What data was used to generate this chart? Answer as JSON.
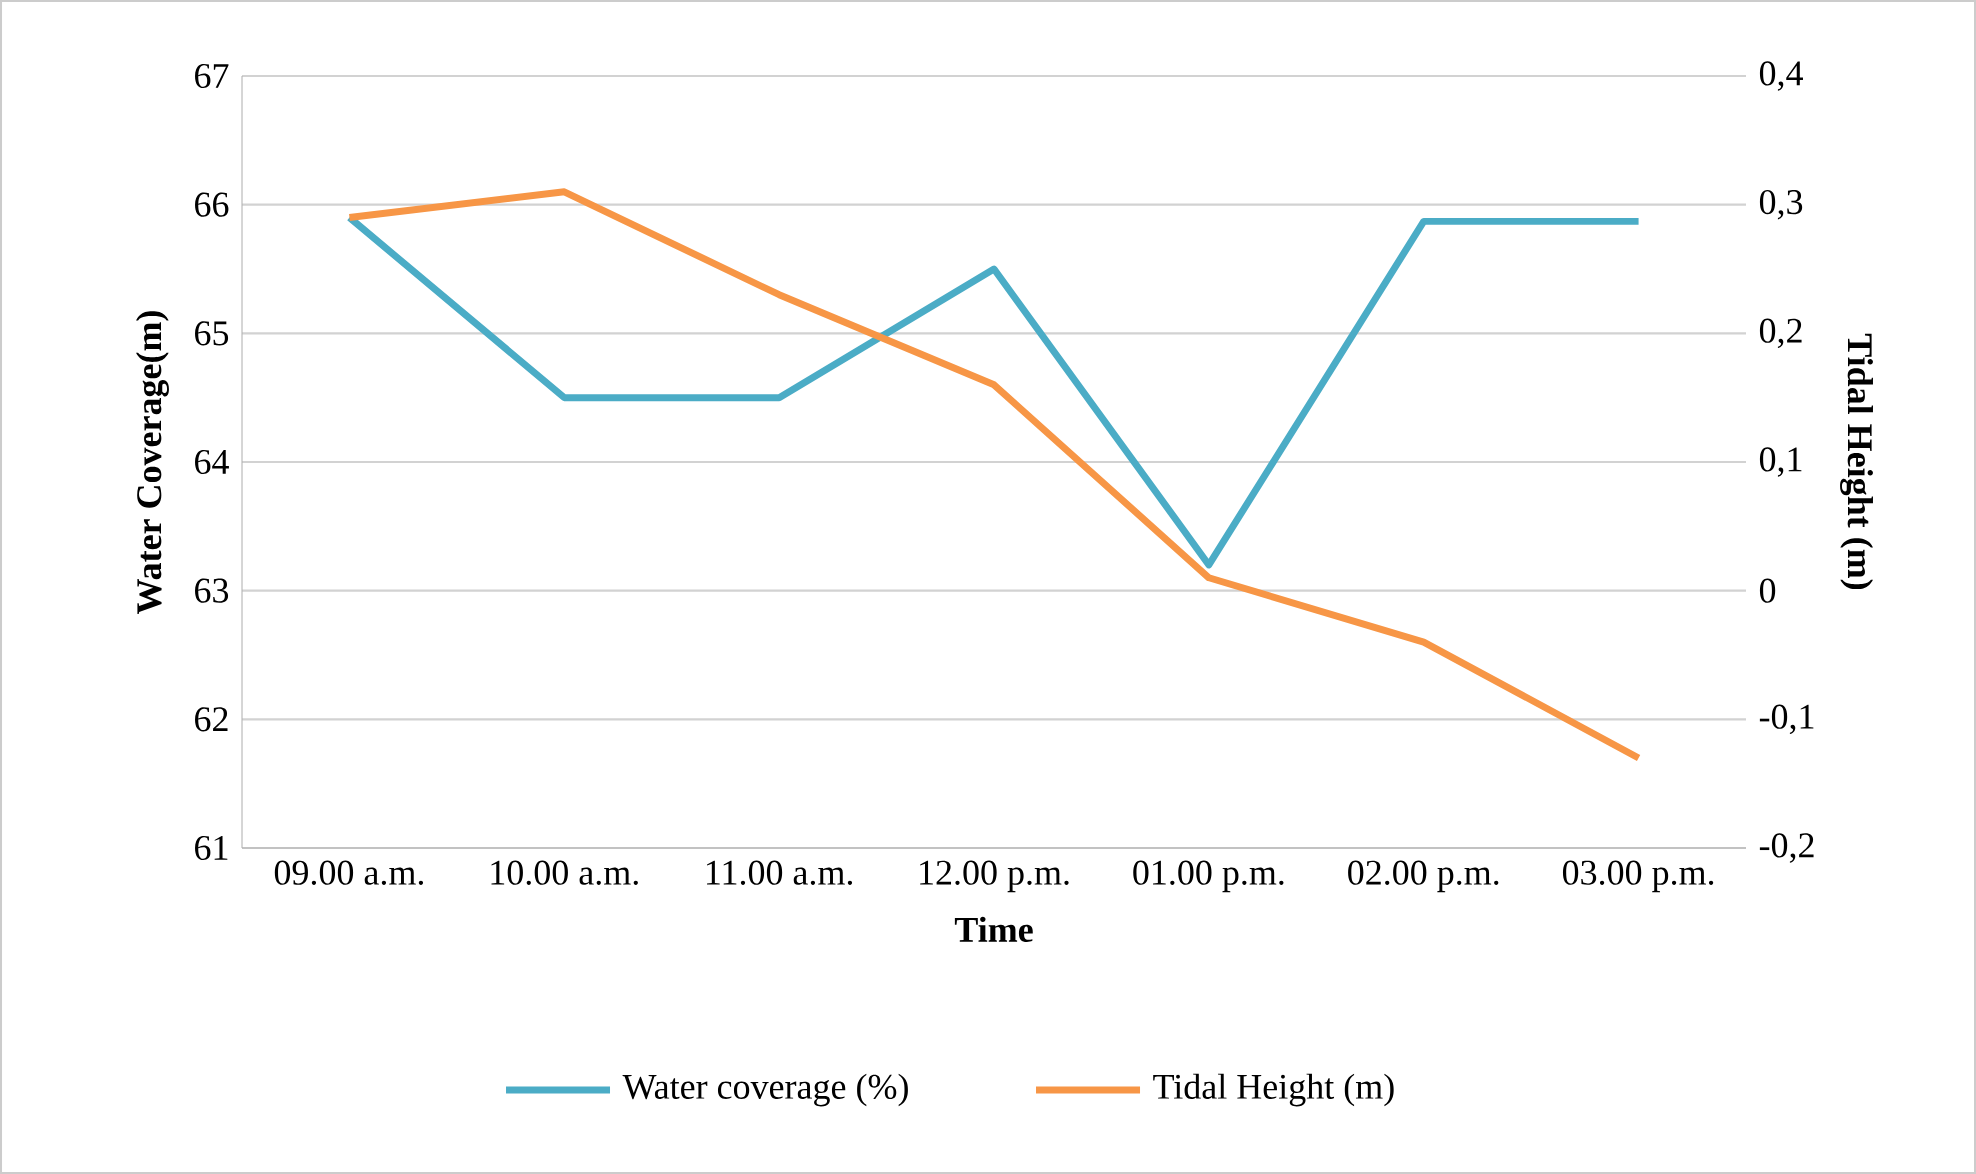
{
  "chart_data": {
    "type": "line",
    "xlabel": "Time",
    "ylabel": "Water Coverage(m)",
    "y2label": "Tidal Height (m)",
    "categories": [
      "09.00 a.m.",
      "10.00 a.m.",
      "11.00 a.m.",
      "12.00 p.m.",
      "01.00 p.m.",
      "02.00 p.m.",
      "03.00 p.m."
    ],
    "series": [
      {
        "name": "Water coverage (%)",
        "color": "#4bacc6",
        "values": [
          65.9,
          64.5,
          64.5,
          65.5,
          63.2,
          65.87,
          65.87
        ]
      },
      {
        "name": "Tidal Height (m)",
        "color": "#f79646",
        "axis": "y2",
        "values": [
          0.29,
          0.31,
          0.23,
          0.16,
          0.01,
          -0.04,
          -0.13
        ]
      }
    ],
    "ylim": [
      61,
      67
    ],
    "yticks": [
      61,
      62,
      63,
      64,
      65,
      66,
      67
    ],
    "y2lim": [
      -0.2,
      0.4
    ],
    "y2ticks": [
      {
        "value": -0.2,
        "label": "-0,2"
      },
      {
        "value": -0.1,
        "label": "-0,1"
      },
      0,
      {
        "value": 0.1,
        "label": "0,1"
      },
      {
        "value": 0.2,
        "label": "0,2"
      },
      {
        "value": 0.3,
        "label": "0,3"
      },
      {
        "value": 0.4,
        "label": "0,4"
      }
    ],
    "grid": "y",
    "legend": "bottom",
    "marker": "none",
    "line_style": "solid"
  }
}
